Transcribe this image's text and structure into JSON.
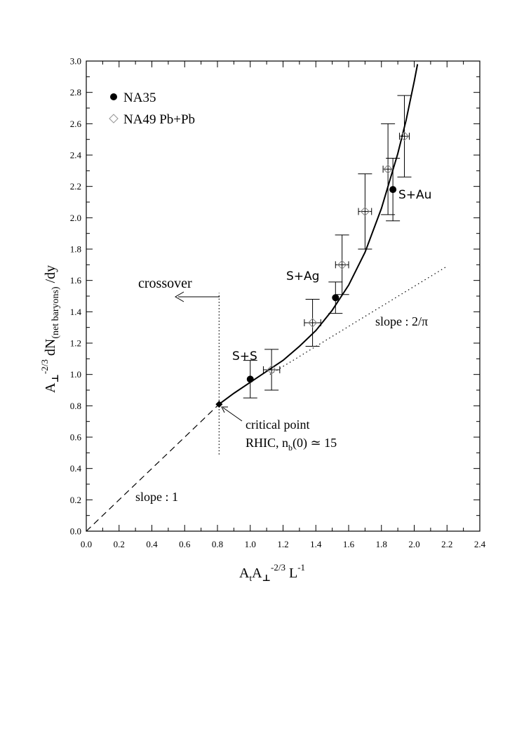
{
  "chart_data": {
    "type": "scatter",
    "x_ticks": [
      "0.0",
      "0.2",
      "0.4",
      "0.6",
      "0.8",
      "1.0",
      "1.2",
      "1.4",
      "1.6",
      "1.8",
      "2.0",
      "2.2",
      "2.4"
    ],
    "y_ticks": [
      "0.0",
      "0.2",
      "0.4",
      "0.6",
      "0.8",
      "1.0",
      "1.2",
      "1.4",
      "1.6",
      "1.8",
      "2.0",
      "2.2",
      "2.4",
      "2.6",
      "2.8",
      "3.0"
    ],
    "xlim": [
      0,
      2.4
    ],
    "ylim": [
      0,
      3.0
    ],
    "grid": false,
    "legend_position": "top-left",
    "series": [
      {
        "name": "NA35",
        "marker": "filled-circle",
        "points": [
          {
            "x": 1.0,
            "y": 0.97,
            "yerr": 0.12,
            "label": "S+S"
          },
          {
            "x": 1.52,
            "y": 1.49,
            "yerr": 0.1,
            "label": "S+Ag"
          },
          {
            "x": 1.87,
            "y": 2.18,
            "yerr": 0.2,
            "label": "S+Au"
          }
        ]
      },
      {
        "name": "NA49 Pb+Pb",
        "marker": "open-diamond",
        "points": [
          {
            "x": 1.13,
            "y": 1.03,
            "xerr": 0.05,
            "yerr": 0.13
          },
          {
            "x": 1.38,
            "y": 1.33,
            "xerr": 0.05,
            "yerr": 0.15
          },
          {
            "x": 1.56,
            "y": 1.7,
            "xerr": 0.04,
            "yerr": 0.19
          },
          {
            "x": 1.7,
            "y": 2.04,
            "xerr": 0.04,
            "yerr": 0.24
          },
          {
            "x": 1.84,
            "y": 2.31,
            "xerr": 0.03,
            "yerr": 0.29
          },
          {
            "x": 1.94,
            "y": 2.52,
            "xerr": 0.03,
            "yerr": 0.26
          }
        ]
      }
    ],
    "curve": [
      [
        0.81,
        0.81
      ],
      [
        0.9,
        0.88
      ],
      [
        1.0,
        0.95
      ],
      [
        1.1,
        1.02
      ],
      [
        1.2,
        1.09
      ],
      [
        1.3,
        1.18
      ],
      [
        1.4,
        1.28
      ],
      [
        1.5,
        1.41
      ],
      [
        1.6,
        1.57
      ],
      [
        1.7,
        1.78
      ],
      [
        1.8,
        2.06
      ],
      [
        1.9,
        2.41
      ],
      [
        1.95,
        2.62
      ],
      [
        2.0,
        2.87
      ],
      [
        2.02,
        2.98
      ]
    ],
    "slope1_line": [
      [
        0.0,
        0.0
      ],
      [
        0.81,
        0.81
      ]
    ],
    "slope2pi_line": [
      [
        1.12,
        1.0
      ],
      [
        2.2,
        1.69
      ]
    ],
    "crossover_line": {
      "x": 0.81,
      "y_from": 0.49,
      "y_to": 1.52
    },
    "critical_point": {
      "x": 0.81,
      "y": 0.81
    },
    "annotations": {
      "crossover": "crossover",
      "slope2pi": "slope : 2/π",
      "slope1": "slope : 1",
      "critical_line1": "critical point",
      "critical_line2_pre": "RHIC, n",
      "critical_line2_sub": "b",
      "critical_line2_post": "(0) ≃ 15",
      "label_ss": "S+S",
      "label_sag": "S+Ag",
      "label_sau": "S+Au"
    },
    "xlabel": {
      "p1": "A",
      "s1": "t",
      "p2": "A",
      "s2": "⊥",
      "sup1": "-2/3",
      "p3": " L",
      "sup2": "-1"
    },
    "ylabel": {
      "p1": "A",
      "s1": "⊥",
      "sup1": "-2/3",
      "p2": " dN",
      "s2": "(net baryons)",
      "p3": " /dy"
    }
  }
}
